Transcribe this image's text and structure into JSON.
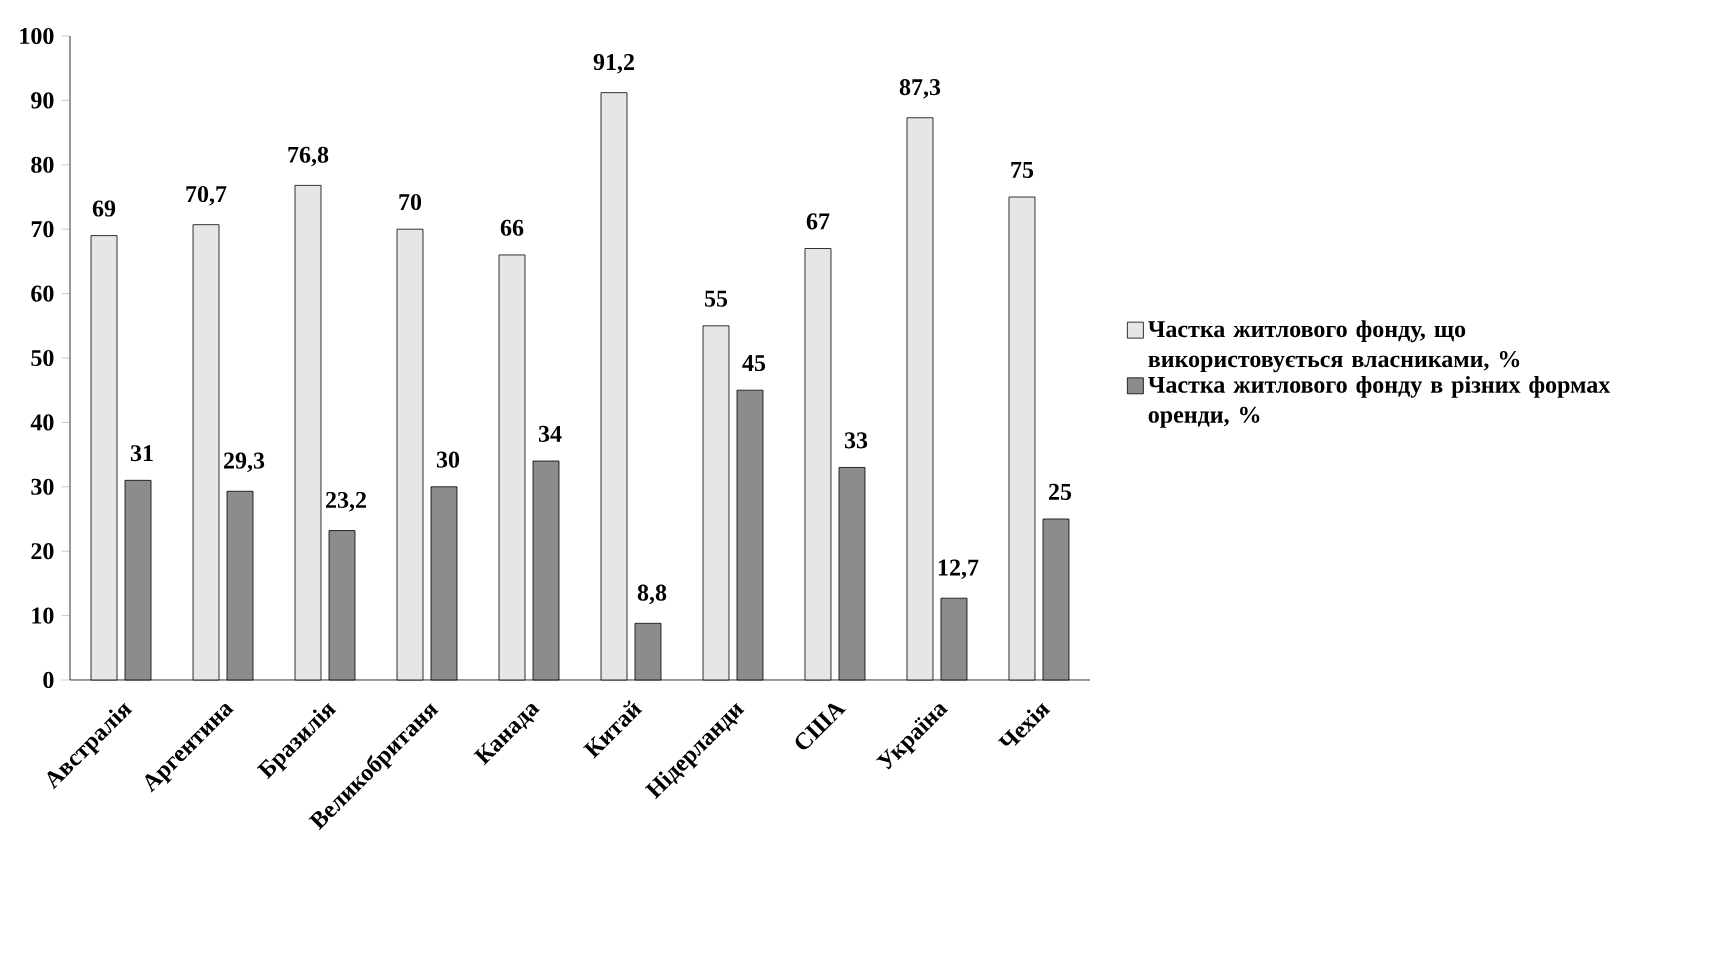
{
  "chart_data": {
    "type": "bar",
    "categories": [
      "Австралія",
      "Аргентина",
      "Бразилія",
      "Великобританя",
      "Канада",
      "Китай",
      "Нідерланди",
      "США",
      "Україна",
      "Чехія"
    ],
    "series": [
      {
        "name": "Частка житлового фонду, що використовується власниками, %",
        "color": "#e6e6e6",
        "values": [
          69,
          70.7,
          76.8,
          70,
          66,
          91.2,
          55,
          67,
          87.3,
          75
        ],
        "value_labels": [
          "69",
          "70,7",
          "76,8",
          "70",
          "66",
          "91,2",
          "55",
          "67",
          "87,3",
          "75"
        ]
      },
      {
        "name": "Частка житлового фонду в різних формах оренди, %",
        "color": "#8c8c8c",
        "values": [
          31,
          29.3,
          23.2,
          30,
          34,
          8.8,
          45,
          33,
          12.7,
          25
        ],
        "value_labels": [
          "31",
          "29,3",
          "23,2",
          "30",
          "34",
          "8,8",
          "45",
          "33",
          "12,7",
          "25"
        ]
      }
    ],
    "ylim": [
      0,
      100
    ],
    "yticks": [
      0,
      10,
      20,
      30,
      40,
      50,
      60,
      70,
      80,
      90,
      100
    ],
    "grid": false,
    "legend": "right"
  }
}
